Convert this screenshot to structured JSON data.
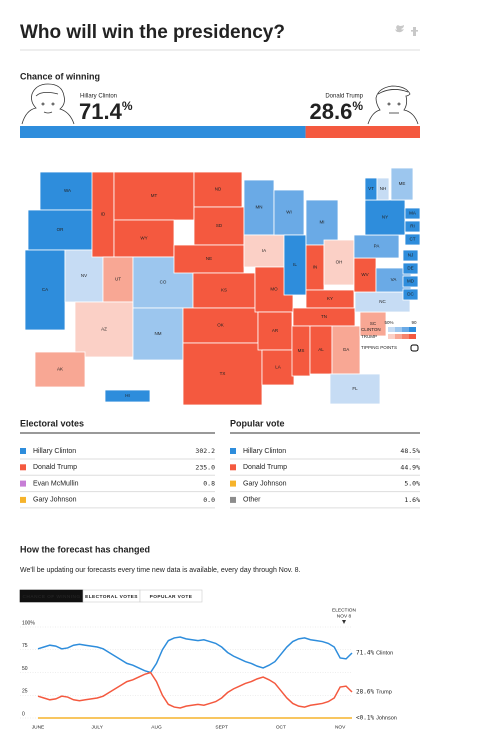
{
  "header": {
    "title": "Who will win the presidency?"
  },
  "chance": {
    "title": "Chance of winning",
    "candidates": [
      {
        "name": "Hillary Clinton",
        "value": 71.4,
        "label": "71.4%",
        "color": "#2e8ddc"
      },
      {
        "name": "Donald Trump",
        "value": 28.6,
        "label": "28.6%",
        "color": "#f4593f"
      }
    ]
  },
  "map": {
    "states": [
      {
        "label": "WA",
        "color": "#2e8ddc"
      },
      {
        "label": "OR",
        "color": "#2e8ddc"
      },
      {
        "label": "CA",
        "color": "#2e8ddc"
      },
      {
        "label": "NV",
        "color": "#c6dcf4"
      },
      {
        "label": "ID",
        "color": "#f4593f"
      },
      {
        "label": "MT",
        "color": "#f4593f"
      },
      {
        "label": "WY",
        "color": "#f4593f"
      },
      {
        "label": "UT",
        "color": "#f8a794"
      },
      {
        "label": "AZ",
        "color": "#fbd0c6"
      },
      {
        "label": "CO",
        "color": "#9cc6ee"
      },
      {
        "label": "NM",
        "color": "#9cc6ee"
      },
      {
        "label": "ND",
        "color": "#f4593f"
      },
      {
        "label": "SD",
        "color": "#f4593f"
      },
      {
        "label": "NE",
        "color": "#f4593f"
      },
      {
        "label": "KS",
        "color": "#f4593f"
      },
      {
        "label": "OK",
        "color": "#f4593f"
      },
      {
        "label": "TX",
        "color": "#f4593f"
      },
      {
        "label": "MN",
        "color": "#6aaae6"
      },
      {
        "label": "IA",
        "color": "#fbd0c6"
      },
      {
        "label": "MO",
        "color": "#f4593f"
      },
      {
        "label": "AR",
        "color": "#f4593f"
      },
      {
        "label": "LA",
        "color": "#f4593f"
      },
      {
        "label": "WI",
        "color": "#6aaae6"
      },
      {
        "label": "IL",
        "color": "#2e8ddc"
      },
      {
        "label": "MI",
        "color": "#6aaae6"
      },
      {
        "label": "IN",
        "color": "#f4593f"
      },
      {
        "label": "OH",
        "color": "#fbd0c6"
      },
      {
        "label": "KY",
        "color": "#f4593f"
      },
      {
        "label": "TN",
        "color": "#f4593f"
      },
      {
        "label": "MS",
        "color": "#f4593f"
      },
      {
        "label": "AL",
        "color": "#f4593f"
      },
      {
        "label": "GA",
        "color": "#f8a794"
      },
      {
        "label": "SC",
        "color": "#f8a794"
      },
      {
        "label": "FL",
        "color": "#c6dcf4"
      },
      {
        "label": "NC",
        "color": "#c6dcf4"
      },
      {
        "label": "WV",
        "color": "#f4593f"
      },
      {
        "label": "VA",
        "color": "#6aaae6"
      },
      {
        "label": "PA",
        "color": "#6aaae6"
      },
      {
        "label": "NY",
        "color": "#2e8ddc"
      },
      {
        "label": "VT",
        "color": "#2e8ddc"
      },
      {
        "label": "NH",
        "color": "#c6dcf4"
      },
      {
        "label": "ME",
        "color": "#9cc6ee"
      },
      {
        "label": "MA",
        "color": "#2e8ddc"
      },
      {
        "label": "RI",
        "color": "#2e8ddc"
      },
      {
        "label": "CT",
        "color": "#2e8ddc"
      },
      {
        "label": "NJ",
        "color": "#2e8ddc"
      },
      {
        "label": "DE",
        "color": "#2e8ddc"
      },
      {
        "label": "MD",
        "color": "#2e8ddc"
      },
      {
        "label": "DC",
        "color": "#2e8ddc"
      },
      {
        "label": "AK",
        "color": "#f8a794"
      },
      {
        "label": "HI",
        "color": "#2e8ddc"
      }
    ],
    "legend": {
      "scale_low": "50%",
      "scale_high": "90",
      "clinton": "CLINTON",
      "trump": "TRUMP",
      "tipping": "TIPPING POINTS",
      "clinton_colors": [
        "#c6dcf4",
        "#9cc6ee",
        "#6aaae6",
        "#2e8ddc"
      ],
      "trump_colors": [
        "#fbd0c6",
        "#f8a794",
        "#f6836b",
        "#f4593f"
      ]
    }
  },
  "electoral": {
    "title": "Electoral votes",
    "rows": [
      {
        "name": "Hillary Clinton",
        "value": "302.2",
        "color": "#2e8ddc"
      },
      {
        "name": "Donald Trump",
        "value": "235.0",
        "color": "#f4593f"
      },
      {
        "name": "Evan McMullin",
        "value": "0.8",
        "color": "#c77ed6"
      },
      {
        "name": "Gary Johnson",
        "value": "0.0",
        "color": "#f6b32b"
      }
    ]
  },
  "popular": {
    "title": "Popular vote",
    "rows": [
      {
        "name": "Hillary Clinton",
        "value": "48.5%",
        "color": "#2e8ddc"
      },
      {
        "name": "Donald Trump",
        "value": "44.9%",
        "color": "#f4593f"
      },
      {
        "name": "Gary Johnson",
        "value": "5.0%",
        "color": "#f6b32b"
      },
      {
        "name": "Other",
        "value": "1.6%",
        "color": "#8c8c8c"
      }
    ]
  },
  "forecast": {
    "title": "How the forecast has changed",
    "subtitle": "We'll be updating our forecasts every time new data is available, every day through Nov. 8.",
    "tabs": [
      "CHANCE OF WINNING",
      "ELECTORAL VOTES",
      "POPULAR VOTE"
    ],
    "active_tab": 0
  },
  "chart_data": {
    "type": "line",
    "categories": [
      "JUNE",
      null,
      null,
      null,
      null,
      null,
      null,
      null,
      null,
      null,
      "JULY",
      null,
      null,
      null,
      null,
      null,
      null,
      null,
      null,
      null,
      "AUG",
      null,
      null,
      null,
      null,
      null,
      null,
      null,
      null,
      null,
      null,
      "SEPT",
      null,
      null,
      null,
      null,
      null,
      null,
      null,
      null,
      null,
      "OCT",
      null,
      null,
      null,
      null,
      null,
      null,
      null,
      null,
      null,
      "NOV",
      null,
      null
    ],
    "series": [
      {
        "name": "Clinton",
        "color": "#2e8ddc",
        "values": [
          76,
          78,
          80,
          79,
          76,
          77,
          80,
          81,
          80,
          79,
          78,
          76,
          72,
          68,
          64,
          60,
          58,
          55,
          52,
          50,
          60,
          75,
          85,
          88,
          89,
          87,
          86,
          85,
          86,
          84,
          82,
          78,
          72,
          68,
          65,
          62,
          60,
          57,
          55,
          58,
          62,
          70,
          78,
          84,
          87,
          88,
          86,
          85,
          84,
          82,
          78,
          66,
          65,
          71.4
        ],
        "value_labels": [
          null,
          null,
          null,
          null,
          null,
          null,
          null,
          null,
          null,
          null,
          null,
          null,
          null,
          null,
          null,
          null,
          null,
          null,
          null,
          null,
          null,
          null,
          null,
          null,
          null,
          null,
          null,
          null,
          null,
          null,
          null,
          null,
          null,
          null,
          null,
          null,
          null,
          null,
          null,
          null,
          null,
          null,
          null,
          null,
          null,
          null,
          null,
          null,
          null,
          null,
          null,
          null,
          null,
          "71.4%"
        ]
      },
      {
        "name": "Trump",
        "color": "#f4593f",
        "values": [
          24,
          22,
          20,
          21,
          24,
          23,
          20,
          19,
          20,
          21,
          22,
          24,
          28,
          32,
          36,
          40,
          42,
          45,
          48,
          50,
          40,
          25,
          15,
          12,
          11,
          13,
          14,
          15,
          14,
          16,
          18,
          22,
          28,
          32,
          35,
          38,
          40,
          43,
          45,
          42,
          38,
          30,
          22,
          16,
          13,
          12,
          14,
          15,
          16,
          18,
          22,
          34,
          35,
          28.6
        ],
        "value_labels": [
          null,
          null,
          null,
          null,
          null,
          null,
          null,
          null,
          null,
          null,
          null,
          null,
          null,
          null,
          null,
          null,
          null,
          null,
          null,
          null,
          null,
          null,
          null,
          null,
          null,
          null,
          null,
          null,
          null,
          null,
          null,
          null,
          null,
          null,
          null,
          null,
          null,
          null,
          null,
          null,
          null,
          null,
          null,
          null,
          null,
          null,
          null,
          null,
          null,
          null,
          null,
          null,
          null,
          "28.6%"
        ]
      },
      {
        "name": "Johnson",
        "color": "#f6b32b",
        "values": [
          0.05,
          0.05,
          0.05,
          0.05,
          0.05,
          0.05,
          0.05,
          0.05,
          0.05,
          0.05,
          0.05,
          0.05,
          0.05,
          0.05,
          0.05,
          0.05,
          0.05,
          0.05,
          0.05,
          0.05,
          0.05,
          0.05,
          0.05,
          0.05,
          0.05,
          0.05,
          0.05,
          0.05,
          0.05,
          0.05,
          0.05,
          0.05,
          0.05,
          0.05,
          0.05,
          0.05,
          0.05,
          0.05,
          0.05,
          0.05,
          0.05,
          0.05,
          0.05,
          0.05,
          0.05,
          0.05,
          0.05,
          0.05,
          0.05,
          0.05,
          0.05,
          0.05,
          0.05,
          0.05
        ],
        "value_labels": [
          null,
          null,
          null,
          null,
          null,
          null,
          null,
          null,
          null,
          null,
          null,
          null,
          null,
          null,
          null,
          null,
          null,
          null,
          null,
          null,
          null,
          null,
          null,
          null,
          null,
          null,
          null,
          null,
          null,
          null,
          null,
          null,
          null,
          null,
          null,
          null,
          null,
          null,
          null,
          null,
          null,
          null,
          null,
          null,
          null,
          null,
          null,
          null,
          null,
          null,
          null,
          null,
          null,
          "<0.1%"
        ]
      }
    ],
    "ylim": [
      0,
      100
    ],
    "yticks": [
      0,
      25,
      50,
      75,
      {
        "value": 100,
        "label": "100%"
      }
    ],
    "grid": true,
    "annotation": [
      "ELECTION",
      "NOV 8"
    ]
  }
}
